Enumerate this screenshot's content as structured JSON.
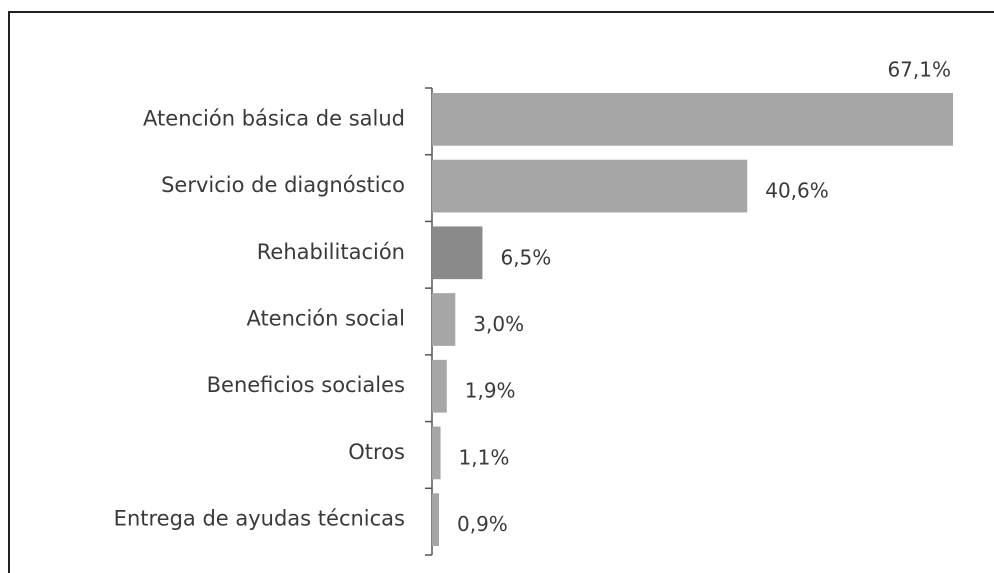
{
  "chart_data": {
    "type": "barh",
    "categories": [
      "Atención básica de salud",
      "Servicio de diagnóstico",
      "Rehabilitación",
      "Atención social",
      "Beneficios sociales",
      "Otros",
      "Entrega de ayudas técnicas"
    ],
    "values": [
      67.1,
      40.6,
      6.5,
      3.0,
      1.9,
      1.1,
      0.9
    ],
    "value_labels": [
      "67,1%",
      "40,6%",
      "6,5%",
      "3,0%",
      "1,9%",
      "1,1%",
      "0,9%"
    ],
    "colors": [
      "#a6a6a6",
      "#a6a6a6",
      "#8a8a8a",
      "#a6a6a6",
      "#a6a6a6",
      "#a6a6a6",
      "#a6a6a6"
    ]
  }
}
